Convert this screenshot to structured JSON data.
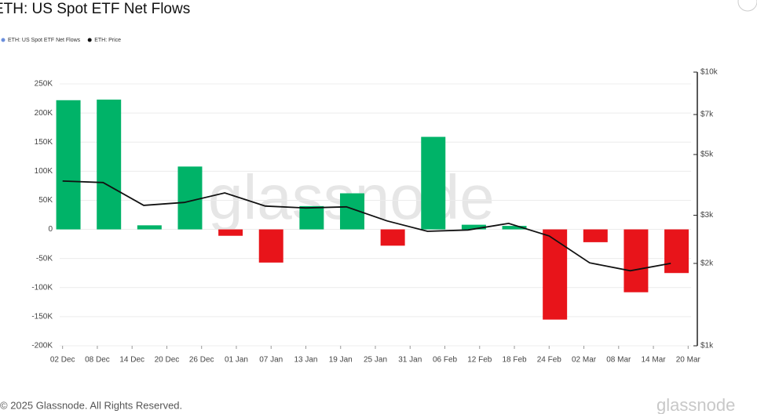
{
  "chart_data": {
    "type": "bar",
    "title": "ETH: US Spot ETF Net Flows",
    "footer": "© 2025 Glassnode. All Rights Reserved.",
    "watermark": "glassnode",
    "xlim": [
      -0.5,
      108.5
    ],
    "xticks": [
      {
        "value": 0,
        "label": "02 Dec"
      },
      {
        "value": 6,
        "label": "08 Dec"
      },
      {
        "value": 12,
        "label": "14 Dec"
      },
      {
        "value": 18,
        "label": "20 Dec"
      },
      {
        "value": 24,
        "label": "26 Dec"
      },
      {
        "value": 30,
        "label": "01 Jan"
      },
      {
        "value": 36,
        "label": "07 Jan"
      },
      {
        "value": 42,
        "label": "13 Jan"
      },
      {
        "value": 48,
        "label": "19 Jan"
      },
      {
        "value": 54,
        "label": "25 Jan"
      },
      {
        "value": 60,
        "label": "31 Jan"
      },
      {
        "value": 66,
        "label": "06 Feb"
      },
      {
        "value": 72,
        "label": "12 Feb"
      },
      {
        "value": 78,
        "label": "18 Feb"
      },
      {
        "value": 84,
        "label": "24 Feb"
      },
      {
        "value": 90,
        "label": "02 Mar"
      },
      {
        "value": 96,
        "label": "08 Mar"
      },
      {
        "value": 102,
        "label": "14 Mar"
      },
      {
        "value": 108,
        "label": "20 Mar"
      }
    ],
    "ylim": [
      -200000,
      250000
    ],
    "yticks": [
      {
        "value": 250000,
        "label": "250K"
      },
      {
        "value": 200000,
        "label": "200K"
      },
      {
        "value": 150000,
        "label": "150K"
      },
      {
        "value": 100000,
        "label": "100K"
      },
      {
        "value": 50000,
        "label": "50K"
      },
      0,
      {
        "value": -50000,
        "label": "-50K"
      },
      {
        "value": -100000,
        "label": "-100K"
      },
      {
        "value": -150000,
        "label": "-150K"
      },
      {
        "value": -200000,
        "label": "-200K"
      }
    ],
    "y2lim": [
      1000,
      10000
    ],
    "y2log": true,
    "y2ticks": [
      {
        "value": 10000,
        "label": "$10k"
      },
      {
        "value": 7000,
        "label": "$7k"
      },
      {
        "value": 5000,
        "label": "$5k"
      },
      {
        "value": 3000,
        "label": "$3k"
      },
      {
        "value": 2000,
        "label": "$2k"
      },
      {
        "value": 1000,
        "label": "$1k"
      }
    ],
    "grid": true,
    "legend": "top-left",
    "positive_color": "#00b368",
    "negative_color": "#e8141a",
    "series": [
      {
        "name": "ETH: US Spot ETF Net Flows",
        "type": "bar",
        "color": "#6b8fdc",
        "x": [
          1,
          8,
          15,
          22,
          29,
          36,
          43,
          50,
          57,
          64,
          71,
          78,
          85,
          92,
          99,
          106
        ],
        "values": [
          222000,
          223000,
          7000,
          108000,
          -11000,
          -57000,
          40000,
          62000,
          -28000,
          159000,
          8000,
          6000,
          -155000,
          -22000,
          -108000,
          -75000
        ]
      },
      {
        "name": "ETH: Price",
        "type": "line",
        "color": "#111111",
        "axis": "y2",
        "x": [
          0,
          7,
          14,
          21,
          28,
          35,
          42,
          49,
          56,
          63,
          70,
          77,
          84,
          91,
          98,
          105
        ],
        "values": [
          4000,
          3950,
          3260,
          3340,
          3620,
          3240,
          3190,
          3220,
          2860,
          2620,
          2650,
          2800,
          2520,
          2010,
          1880,
          2000
        ]
      }
    ]
  }
}
